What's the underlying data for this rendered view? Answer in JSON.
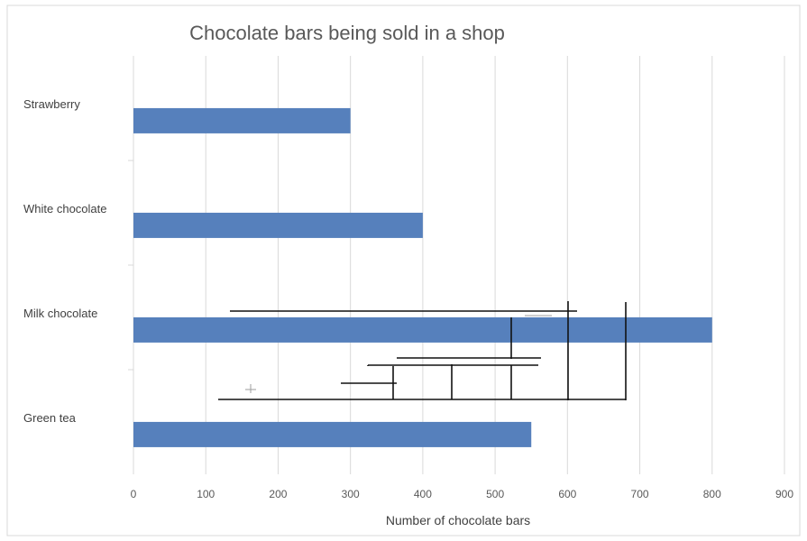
{
  "chart_data": {
    "type": "bar",
    "orientation": "horizontal",
    "title": "Chocolate bars being sold in a shop",
    "xlabel": "Number of chocolate bars",
    "ylabel": "",
    "categories": [
      "Strawberry",
      "White chocolate",
      "Milk chocolate",
      "Green tea"
    ],
    "values": [
      300,
      400,
      800,
      550
    ],
    "xlim": [
      0,
      900
    ],
    "xticks": [
      0,
      100,
      200,
      300,
      400,
      500,
      600,
      700,
      800,
      900
    ],
    "grid": true,
    "legend": "none",
    "bar_color": "#5680BC"
  }
}
